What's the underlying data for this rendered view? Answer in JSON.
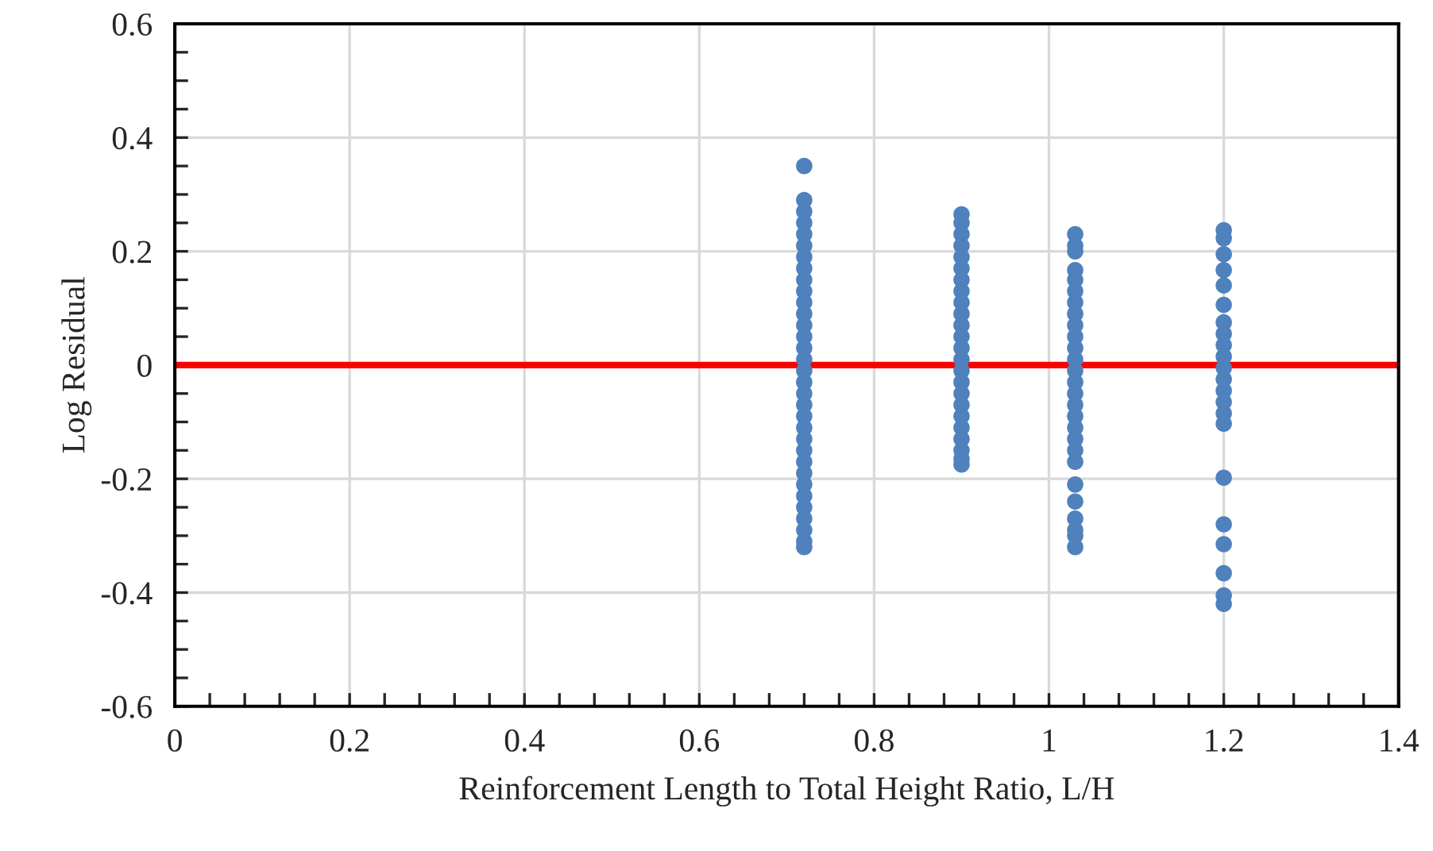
{
  "chart_data": {
    "type": "scatter",
    "xlabel": "Reinforcement Length to Total Height Ratio, L/H",
    "ylabel": "Log Residual",
    "xlim": [
      0,
      1.4
    ],
    "xticks": [
      0,
      0.2,
      0.4,
      0.6,
      0.8,
      1,
      1.2,
      1.4
    ],
    "ylim": [
      -0.6,
      0.6
    ],
    "yticks": [
      -0.6,
      -0.4,
      -0.2,
      0,
      0.2,
      0.4,
      0.6
    ],
    "grid": true,
    "marker": "circle",
    "ref_lines": [
      {
        "axis": "y",
        "value": 0,
        "color": "#ff0000",
        "line_style": "solid"
      }
    ],
    "series": [
      {
        "color": "#4f81bd",
        "x": [
          0.72,
          0.72,
          0.72,
          0.72,
          0.72,
          0.72,
          0.72,
          0.72,
          0.72,
          0.72,
          0.72,
          0.72,
          0.72,
          0.72,
          0.72,
          0.72,
          0.72,
          0.72,
          0.72,
          0.72,
          0.72,
          0.72,
          0.72,
          0.72,
          0.72,
          0.72,
          0.72,
          0.72,
          0.72,
          0.72,
          0.72,
          0.72,
          0.72,
          0.9,
          0.9,
          0.9,
          0.9,
          0.9,
          0.9,
          0.9,
          0.9,
          0.9,
          0.9,
          0.9,
          0.9,
          0.9,
          0.9,
          0.9,
          0.9,
          0.9,
          0.9,
          0.9,
          0.9,
          0.9,
          0.9,
          0.9,
          0.9,
          1.03,
          1.03,
          1.03,
          1.03,
          1.03,
          1.03,
          1.03,
          1.03,
          1.03,
          1.03,
          1.03,
          1.03,
          1.03,
          1.03,
          1.03,
          1.03,
          1.03,
          1.03,
          1.03,
          1.03,
          1.03,
          1.03,
          1.03,
          1.03,
          1.03,
          1.03,
          1.03,
          1.2,
          1.2,
          1.2,
          1.2,
          1.2,
          1.2,
          1.2,
          1.2,
          1.2,
          1.2,
          1.2,
          1.2,
          1.2,
          1.2,
          1.2,
          1.2,
          1.2,
          1.2,
          1.2,
          1.2,
          1.2,
          1.2
        ],
        "values": [
          0.35,
          0.29,
          0.27,
          0.25,
          0.23,
          0.21,
          0.19,
          0.17,
          0.15,
          0.13,
          0.11,
          0.09,
          0.07,
          0.05,
          0.03,
          0.01,
          -0.01,
          -0.03,
          -0.05,
          -0.07,
          -0.09,
          -0.11,
          -0.13,
          -0.15,
          -0.17,
          -0.19,
          -0.21,
          -0.23,
          -0.25,
          -0.27,
          -0.29,
          -0.31,
          -0.32,
          0.265,
          0.25,
          0.23,
          0.21,
          0.19,
          0.17,
          0.15,
          0.13,
          0.11,
          0.09,
          0.07,
          0.05,
          0.03,
          0.01,
          -0.01,
          -0.03,
          -0.05,
          -0.07,
          -0.09,
          -0.11,
          -0.13,
          -0.15,
          -0.165,
          -0.175,
          0.23,
          0.21,
          0.2,
          0.167,
          0.15,
          0.13,
          0.11,
          0.09,
          0.07,
          0.05,
          0.03,
          0.01,
          -0.01,
          -0.03,
          -0.05,
          -0.07,
          -0.09,
          -0.11,
          -0.13,
          -0.15,
          -0.17,
          -0.21,
          -0.24,
          -0.27,
          -0.29,
          -0.3,
          -0.32,
          0.237,
          0.223,
          0.195,
          0.167,
          0.14,
          0.106,
          0.075,
          0.055,
          0.035,
          0.015,
          -0.005,
          -0.025,
          -0.045,
          -0.065,
          -0.085,
          -0.103,
          -0.198,
          -0.28,
          -0.315,
          -0.366,
          -0.405,
          -0.42
        ]
      }
    ]
  }
}
